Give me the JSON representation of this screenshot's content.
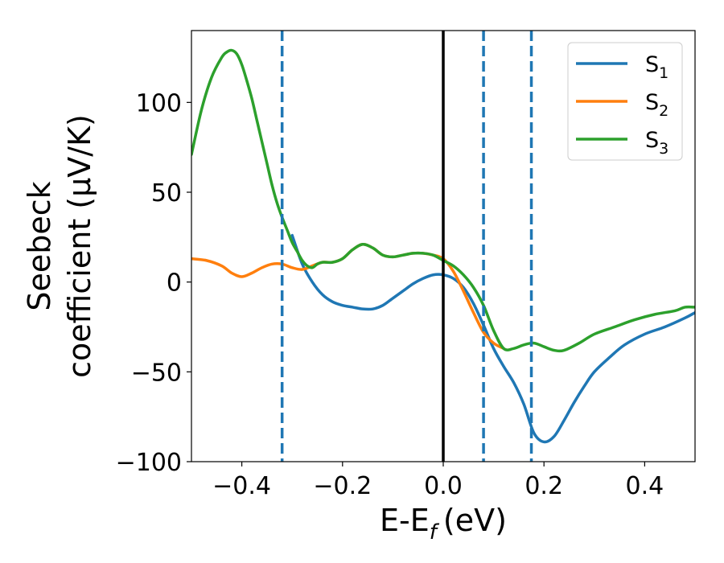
{
  "chart_data": {
    "type": "line",
    "title": "",
    "xlabel": "E-E",
    "xlabel_sub": "f",
    "xlabel_unit": "(eV)",
    "ylabel_line1": "Seebeck",
    "ylabel_line2": "coefficient  (μV/K)",
    "xlim": [
      -0.5,
      0.5
    ],
    "ylim": [
      -100,
      140
    ],
    "xticks": [
      -0.4,
      -0.2,
      0.0,
      0.2,
      0.4
    ],
    "xtick_labels": [
      "−0.4",
      "−0.2",
      "0.0",
      "0.2",
      "0.4"
    ],
    "yticks": [
      -100,
      -50,
      0,
      50,
      100
    ],
    "ytick_labels": [
      "−100",
      "−50",
      "0",
      "50",
      "100"
    ],
    "grid": false,
    "legend_position": "top-right",
    "vertical_lines": [
      {
        "x": -0.32,
        "style": "dashed",
        "color": "#1f77b4"
      },
      {
        "x": 0.0,
        "style": "solid",
        "color": "#000000"
      },
      {
        "x": 0.08,
        "style": "dashed",
        "color": "#1f77b4"
      },
      {
        "x": 0.175,
        "style": "dashed",
        "color": "#1f77b4"
      }
    ],
    "series": [
      {
        "name": "S",
        "sub": "1",
        "color": "#1f77b4",
        "x": [
          -0.3,
          -0.28,
          -0.26,
          -0.24,
          -0.22,
          -0.2,
          -0.18,
          -0.16,
          -0.14,
          -0.12,
          -0.1,
          -0.08,
          -0.06,
          -0.04,
          -0.02,
          0.0,
          0.02,
          0.04,
          0.06,
          0.08,
          0.1,
          0.12,
          0.14,
          0.16,
          0.18,
          0.2,
          0.22,
          0.24,
          0.26,
          0.28,
          0.3,
          0.33,
          0.36,
          0.4,
          0.44,
          0.48,
          0.5
        ],
        "y": [
          26,
          10,
          0,
          -7,
          -11,
          -13,
          -14,
          -15,
          -15,
          -13,
          -9,
          -5,
          -1,
          2,
          4,
          4,
          2,
          -3,
          -12,
          -24,
          -37,
          -47,
          -56,
          -68,
          -84,
          -89,
          -86,
          -77,
          -67,
          -58,
          -50,
          -42,
          -35,
          -29,
          -25,
          -20,
          -17
        ]
      },
      {
        "name": "S",
        "sub": "2",
        "color": "#ff7f0e",
        "x": [
          -0.5,
          -0.47,
          -0.44,
          -0.42,
          -0.4,
          -0.38,
          -0.36,
          -0.34,
          -0.32,
          -0.3,
          -0.28,
          -0.26,
          -0.24,
          -0.22,
          -0.2,
          -0.18,
          -0.16,
          -0.14,
          -0.12,
          -0.1,
          -0.08,
          -0.06,
          -0.04,
          -0.02,
          0.0,
          0.02,
          0.04,
          0.06,
          0.08,
          0.1,
          0.12
        ],
        "y": [
          13,
          12,
          9,
          5,
          3,
          5,
          8,
          10,
          10,
          8,
          7,
          9,
          11,
          11,
          13,
          18,
          21,
          19,
          15,
          14,
          15,
          16,
          16,
          15,
          13,
          6,
          -5,
          -17,
          -28,
          -34,
          -37
        ]
      },
      {
        "name": "S",
        "sub": "3",
        "color": "#2ca02c",
        "x": [
          -0.5,
          -0.48,
          -0.46,
          -0.44,
          -0.43,
          -0.42,
          -0.41,
          -0.4,
          -0.39,
          -0.38,
          -0.37,
          -0.36,
          -0.35,
          -0.34,
          -0.33,
          -0.32,
          -0.31,
          -0.3,
          -0.29,
          -0.28,
          -0.27,
          -0.26,
          -0.25,
          -0.24,
          -0.22,
          -0.2,
          -0.18,
          -0.16,
          -0.14,
          -0.12,
          -0.1,
          -0.08,
          -0.06,
          -0.04,
          -0.02,
          0.0,
          0.02,
          0.04,
          0.06,
          0.08,
          0.1,
          0.12,
          0.14,
          0.16,
          0.18,
          0.2,
          0.22,
          0.24,
          0.27,
          0.3,
          0.34,
          0.38,
          0.42,
          0.46,
          0.48,
          0.5
        ],
        "y": [
          71,
          96,
          114,
          125,
          128,
          129,
          127,
          121,
          112,
          102,
          90,
          78,
          66,
          54,
          44,
          36,
          29,
          22,
          17,
          12,
          9,
          8,
          10,
          11,
          11,
          13,
          18,
          21,
          19,
          15,
          14,
          15,
          16,
          16,
          15,
          12,
          9,
          4,
          -3,
          -13,
          -27,
          -37,
          -37,
          -35,
          -34,
          -36,
          -38,
          -38,
          -34,
          -29,
          -25,
          -21,
          -18,
          -16,
          -14,
          -14
        ]
      }
    ]
  }
}
